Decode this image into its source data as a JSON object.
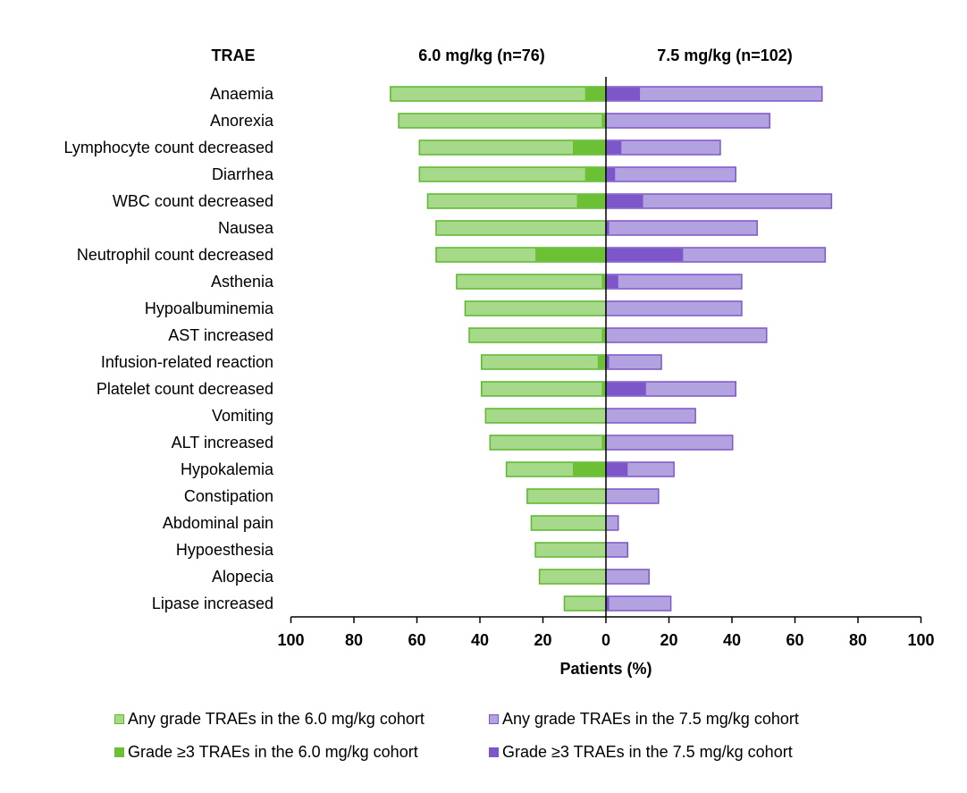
{
  "chart_data": {
    "type": "bar",
    "headers": {
      "category": "TRAE",
      "left": "6.0 mg/kg (n=76)",
      "right": "7.5 mg/kg (n=102)"
    },
    "xlabel": "Patients (%)",
    "xlim": [
      -100,
      100
    ],
    "xticks": [
      100,
      80,
      60,
      40,
      20,
      0,
      20,
      40,
      60,
      80,
      100
    ],
    "categories": [
      "Anaemia",
      "Anorexia",
      "Lymphocyte count decreased",
      "Diarrhea",
      "WBC count decreased",
      "Nausea",
      "Neutrophil count decreased",
      "Asthenia",
      "Hypoalbuminemia",
      "AST increased",
      "Infusion-related reaction",
      "Platelet count decreased",
      "Vomiting",
      "ALT increased",
      "Hypokalemia",
      "Constipation",
      "Abdominal pain",
      "Hypoesthesia",
      "Alopecia",
      "Lipase increased"
    ],
    "series": [
      {
        "name": "Any grade TRAEs in the 6.0 mg/kg cohort",
        "side": "left",
        "color": "#a6d98a",
        "border": "#5cb82c",
        "values": [
          68.4,
          65.8,
          59.2,
          59.2,
          56.6,
          53.9,
          53.9,
          47.4,
          44.7,
          43.4,
          39.5,
          39.5,
          38.2,
          36.8,
          31.6,
          25.0,
          23.7,
          22.4,
          21.1,
          13.2
        ]
      },
      {
        "name": "Grade ≥3 TRAEs in the 6.0 mg/kg cohort",
        "side": "left",
        "color": "#6cc033",
        "border": "#6cc033",
        "values": [
          6.6,
          1.3,
          10.5,
          6.6,
          9.2,
          0,
          22.4,
          1.3,
          0,
          1.3,
          2.6,
          1.3,
          0,
          1.3,
          10.5,
          0,
          0,
          0,
          0,
          0
        ]
      },
      {
        "name": "Any grade TRAEs in the 7.5 mg/kg cohort",
        "side": "right",
        "color": "#b3a2e0",
        "border": "#7d57c9",
        "values": [
          68.6,
          52.0,
          36.3,
          41.2,
          71.6,
          48.0,
          69.6,
          43.1,
          43.1,
          51.0,
          17.6,
          41.2,
          28.4,
          40.2,
          21.6,
          16.7,
          3.9,
          6.9,
          13.7,
          20.6
        ]
      },
      {
        "name": "Grade ≥3 TRAEs in the 7.5 mg/kg cohort",
        "side": "right",
        "color": "#7d57c9",
        "border": "#7d57c9",
        "values": [
          10.8,
          0,
          4.9,
          2.9,
          11.8,
          1.0,
          24.5,
          3.9,
          0,
          0,
          1.0,
          12.7,
          0,
          0,
          6.9,
          0,
          0,
          0,
          0,
          1.0
        ]
      }
    ],
    "legend_position": "bottom",
    "grid": false
  }
}
